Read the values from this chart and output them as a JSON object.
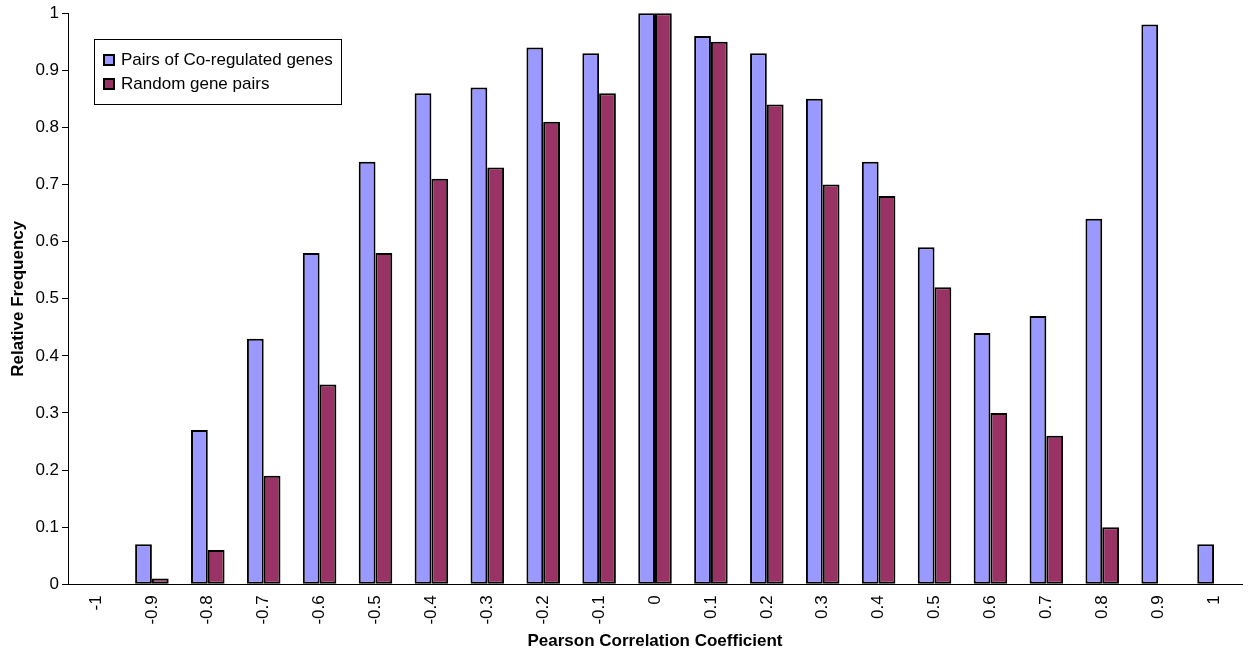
{
  "chart_data": {
    "type": "bar",
    "xlabel": "Pearson Correlation Coefficient",
    "ylabel": "Relative Frequency",
    "categories": [
      "-1",
      "-0.9",
      "-0.8",
      "-0.7",
      "-0.6",
      "-0.5",
      "-0.4",
      "-0.3",
      "-0.2",
      "-0.1",
      "0",
      "0.1",
      "0.2",
      "0.3",
      "0.4",
      "0.5",
      "0.6",
      "0.7",
      "0.8",
      "0.9",
      "1"
    ],
    "series": [
      {
        "name": "Pairs of Co-regulated genes",
        "color": "#9999ff",
        "values": [
          0,
          0.07,
          0.27,
          0.43,
          0.58,
          0.74,
          0.86,
          0.87,
          0.94,
          0.93,
          1,
          0.96,
          0.93,
          0.85,
          0.74,
          0.59,
          0.44,
          0.47,
          0.64,
          0.98,
          0.07
        ]
      },
      {
        "name": "Random gene pairs",
        "color": "#993366",
        "values": [
          0,
          0.01,
          0.06,
          0.19,
          0.35,
          0.58,
          0.71,
          0.73,
          0.81,
          0.86,
          1,
          0.95,
          0.84,
          0.7,
          0.68,
          0.52,
          0.3,
          0.26,
          0.1,
          0,
          0
        ]
      }
    ],
    "ylim": [
      0,
      1
    ],
    "yticks": [
      0,
      0.1,
      0.2,
      0.3,
      0.4,
      0.5,
      0.6,
      0.7,
      0.8,
      0.9,
      1
    ],
    "grid": false,
    "legend": "top left"
  }
}
